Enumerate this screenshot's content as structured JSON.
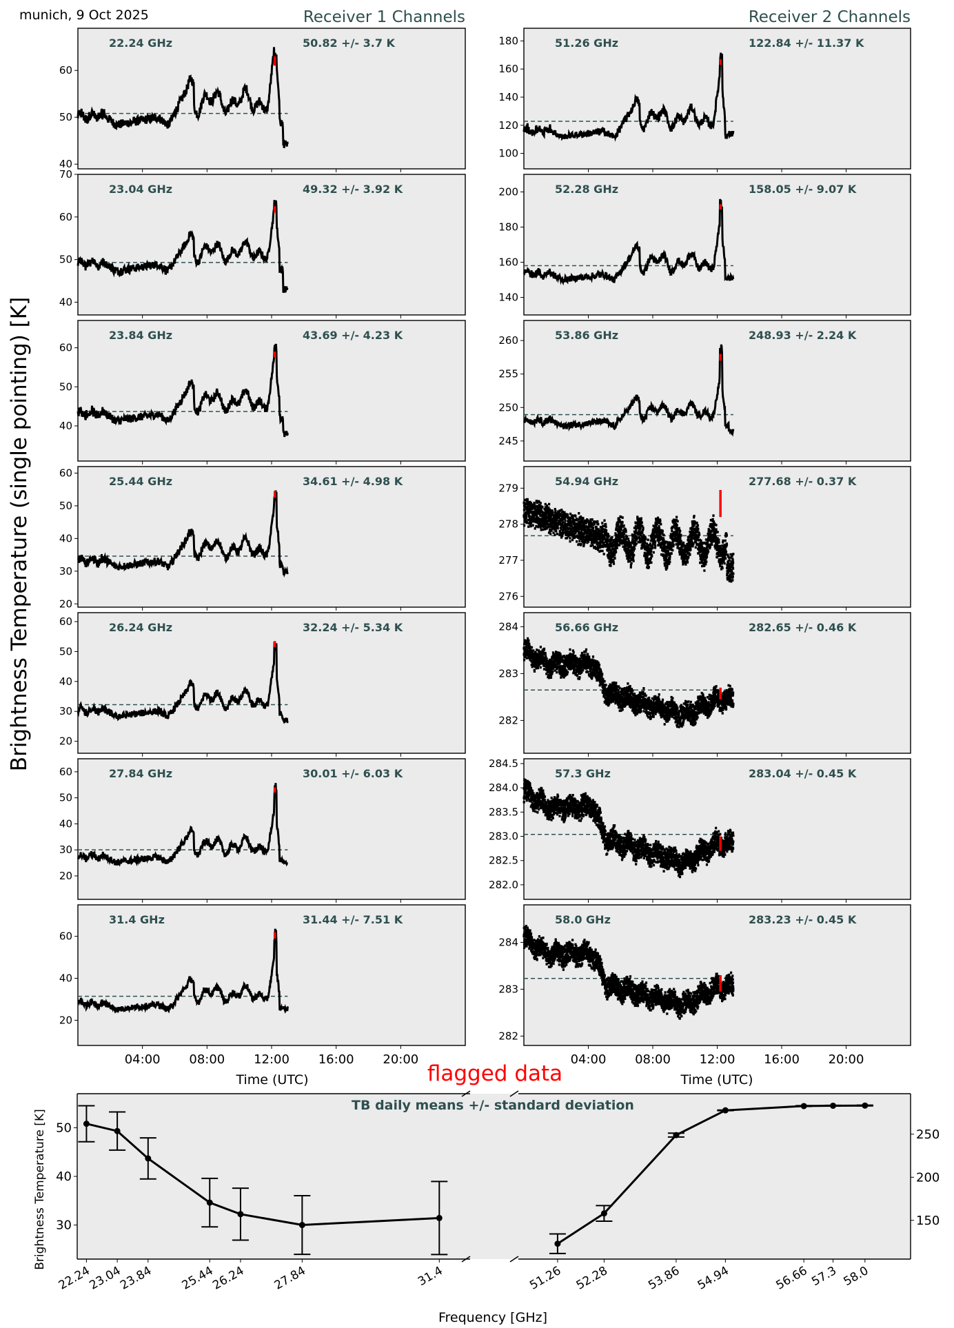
{
  "header": {
    "location_date": "munich, 9 Oct 2025",
    "receiver1_title": "Receiver 1 Channels",
    "receiver2_title": "Receiver 2 Channels",
    "shared_ylabel": "Brightness Temperature (single pointing) [K]",
    "flagged_label": "flagged data"
  },
  "colors": {
    "axes_bg": "#ebebeb",
    "title_color": "#2f4f4f",
    "data_color": "#000000",
    "flag_color": "#ff0000",
    "mean_line_color": "#2f4f4f"
  },
  "chart_data": [
    {
      "type": "line",
      "title": "Receiver 1 Channels",
      "xlabel": "Time (UTC)",
      "ylabel": "Brightness Temperature (single pointing) [K]",
      "x_range_hours": [
        0,
        24
      ],
      "x_ticks": [
        "04:00",
        "08:00",
        "12:00",
        "16:00",
        "20:00"
      ],
      "x_tick_hours": [
        4,
        8,
        12,
        16,
        20
      ],
      "data_end_hour": 13.0,
      "flag_hour": 12.2,
      "panels": [
        {
          "freq": "22.24 GHz",
          "stat": "50.82 +/- 3.7 K",
          "mean": 50.82,
          "ylim": [
            39,
            69
          ],
          "yticks": [
            40,
            50,
            60
          ],
          "base": 49,
          "low": 46,
          "high": 57,
          "peak": 64,
          "flag_top": 63,
          "flag_bottom": 61,
          "end": 44,
          "style": "line"
        },
        {
          "freq": "23.04 GHz",
          "stat": "49.32 +/- 3.92 K",
          "mean": 49.32,
          "ylim": [
            37,
            70
          ],
          "yticks": [
            40,
            50,
            60,
            70
          ],
          "base": 48,
          "low": 44.5,
          "high": 55,
          "peak": 64,
          "flag_top": 62.5,
          "flag_bottom": 61,
          "end": 43,
          "style": "line"
        },
        {
          "freq": "23.84 GHz",
          "stat": "43.69 +/- 4.23 K",
          "mean": 43.69,
          "ylim": [
            31,
            67
          ],
          "yticks": [
            40,
            50,
            60
          ],
          "base": 42,
          "low": 38.5,
          "high": 50,
          "peak": 61,
          "flag_top": 59,
          "flag_bottom": 57.5,
          "end": 38,
          "style": "line"
        },
        {
          "freq": "25.44 GHz",
          "stat": "34.61 +/- 4.98 K",
          "mean": 34.61,
          "ylim": [
            19,
            62
          ],
          "yticks": [
            20,
            30,
            40,
            50,
            60
          ],
          "base": 32,
          "low": 28.5,
          "high": 41,
          "peak": 56,
          "flag_top": 54.5,
          "flag_bottom": 52.5,
          "end": 29.5,
          "style": "line"
        },
        {
          "freq": "26.24 GHz",
          "stat": "32.24 +/- 5.34 K",
          "mean": 32.24,
          "ylim": [
            16,
            63
          ],
          "yticks": [
            20,
            30,
            40,
            50,
            60
          ],
          "base": 29,
          "low": 25.5,
          "high": 38,
          "peak": 55,
          "flag_top": 53.5,
          "flag_bottom": 51.5,
          "end": 27,
          "style": "line"
        },
        {
          "freq": "27.84 GHz",
          "stat": "30.01 +/- 6.03 K",
          "mean": 30.01,
          "ylim": [
            11,
            65
          ],
          "yticks": [
            20,
            30,
            40,
            50,
            60
          ],
          "base": 26,
          "low": 22,
          "high": 36,
          "peak": 56,
          "flag_top": 54,
          "flag_bottom": 52,
          "end": 25,
          "style": "line"
        },
        {
          "freq": "31.4 GHz",
          "stat": "31.44 +/- 7.51 K",
          "mean": 31.44,
          "ylim": [
            8,
            75
          ],
          "yticks": [
            20,
            40,
            60
          ],
          "base": 26,
          "low": 22,
          "high": 38,
          "peak": 65,
          "flag_top": 62,
          "flag_bottom": 59,
          "end": 25.5,
          "style": "line"
        }
      ]
    },
    {
      "type": "line",
      "title": "Receiver 2 Channels",
      "xlabel": "Time (UTC)",
      "x_range_hours": [
        0,
        24
      ],
      "x_ticks": [
        "04:00",
        "08:00",
        "12:00",
        "16:00",
        "20:00"
      ],
      "x_tick_hours": [
        4,
        8,
        12,
        16,
        20
      ],
      "data_end_hour": 13.0,
      "flag_hour": 12.2,
      "panels": [
        {
          "freq": "51.26 GHz",
          "stat": "122.84 +/- 11.37 K",
          "mean": 122.84,
          "ylim": [
            89,
            189
          ],
          "yticks": [
            100,
            120,
            140,
            160,
            180
          ],
          "base": 113,
          "low": 107,
          "high": 135,
          "peak": 172,
          "flag_top": 167,
          "flag_bottom": 163,
          "end": 114,
          "style": "line"
        },
        {
          "freq": "52.28 GHz",
          "stat": "158.05 +/- 9.07 K",
          "mean": 158.05,
          "ylim": [
            130,
            210
          ],
          "yticks": [
            140,
            160,
            180,
            200
          ],
          "base": 151,
          "low": 146,
          "high": 167,
          "peak": 197,
          "flag_top": 193,
          "flag_bottom": 190,
          "end": 151,
          "style": "line"
        },
        {
          "freq": "53.86 GHz",
          "stat": "248.93 +/- 2.24 K",
          "mean": 248.93,
          "ylim": [
            242,
            263
          ],
          "yticks": [
            245,
            250,
            255,
            260
          ],
          "base": 247.5,
          "low": 246,
          "high": 251,
          "peak": 259.5,
          "flag_top": 258,
          "flag_bottom": 257,
          "end": 246.5,
          "style": "line"
        },
        {
          "freq": "54.94 GHz",
          "stat": "277.68 +/- 0.37 K",
          "mean": 277.68,
          "ylim": [
            275.7,
            279.6
          ],
          "yticks": [
            276,
            277,
            278,
            279
          ],
          "start": 278.4,
          "mid": 277.6,
          "late": 277.5,
          "dip": 276.8,
          "peak": 279.1,
          "flag_top": 278.95,
          "flag_bottom": 278.2,
          "end": 276.9,
          "spread": 0.35,
          "style": "scatter"
        },
        {
          "freq": "56.66 GHz",
          "stat": "282.65 +/- 0.46 K",
          "mean": 282.65,
          "ylim": [
            281.3,
            284.3
          ],
          "yticks": [
            282,
            283,
            284
          ],
          "start": 283.5,
          "plateau": 283.2,
          "step_hour": 4.3,
          "after": 282.6,
          "min": 282.1,
          "end": 282.35,
          "peak": 282.9,
          "flag_top": 282.7,
          "flag_bottom": 282.45,
          "spread": 0.2,
          "style": "scatter"
        },
        {
          "freq": "57.3 GHz",
          "stat": "283.04 +/- 0.45 K",
          "mean": 283.04,
          "ylim": [
            281.7,
            284.6
          ],
          "yticks": [
            282.0,
            282.5,
            283.0,
            283.5,
            284.0,
            284.5
          ],
          "start": 283.95,
          "plateau": 283.6,
          "step_hour": 4.3,
          "after": 282.95,
          "min": 282.45,
          "end": 282.75,
          "peak": 283.15,
          "flag_top": 283.0,
          "flag_bottom": 282.7,
          "spread": 0.2,
          "style": "scatter"
        },
        {
          "freq": "58.0 GHz",
          "stat": "283.23 +/- 0.45 K",
          "mean": 283.23,
          "ylim": [
            281.8,
            284.8
          ],
          "yticks": [
            282,
            283,
            284
          ],
          "start": 284.1,
          "plateau": 283.75,
          "step_hour": 4.3,
          "after": 283.1,
          "min": 282.65,
          "end": 282.95,
          "peak": 283.35,
          "flag_top": 283.3,
          "flag_bottom": 282.95,
          "spread": 0.2,
          "style": "scatter"
        }
      ]
    },
    {
      "type": "line",
      "title": "TB daily means +/- standard deviation",
      "xlabel": "Frequency [GHz]",
      "ylabel": "Brightness Temperature [K]",
      "left": {
        "x": [
          22.24,
          23.04,
          23.84,
          25.44,
          26.24,
          27.84,
          31.4
        ],
        "x_labels": [
          "22.24",
          "23.04",
          "23.84",
          "25.44",
          "26.24",
          "27.84",
          "31.4"
        ],
        "xlim": [
          22.0,
          32.2
        ],
        "y": [
          50.82,
          49.32,
          43.69,
          34.61,
          32.24,
          30.01,
          31.44
        ],
        "yerr": [
          3.7,
          3.92,
          4.23,
          4.98,
          5.34,
          6.03,
          7.51
        ],
        "ylim": [
          23,
          57
        ],
        "yticks": [
          30,
          40,
          50
        ]
      },
      "right": {
        "x": [
          51.26,
          52.28,
          53.86,
          54.94,
          56.66,
          57.3,
          58.0
        ],
        "x_labels": [
          "51.26",
          "52.28",
          "53.86",
          "54.94",
          "56.66",
          "57.3",
          "58.0"
        ],
        "xlim": [
          50.4,
          59.0
        ],
        "y": [
          122.84,
          158.05,
          248.93,
          277.68,
          282.65,
          283.04,
          283.23
        ],
        "yerr": [
          11.37,
          9.07,
          2.24,
          0.37,
          0.46,
          0.45,
          0.45
        ],
        "ylim": [
          105,
          297
        ],
        "yticks": [
          150,
          200,
          250
        ]
      }
    }
  ]
}
